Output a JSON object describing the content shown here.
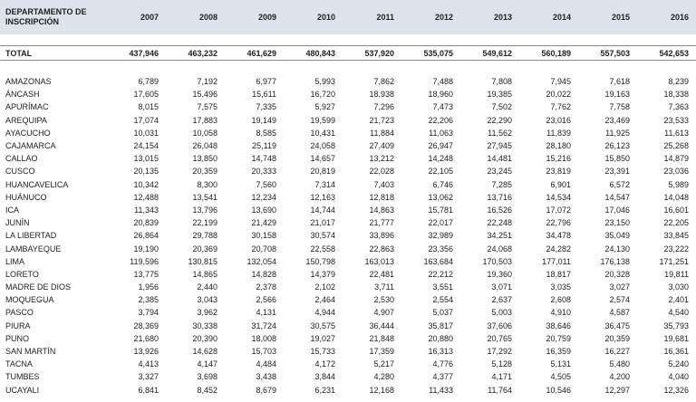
{
  "table": {
    "columns": [
      "DEPARTAMENTO DE INSCRIPCIÓN",
      "2007",
      "2008",
      "2009",
      "2010",
      "2011",
      "2012",
      "2013",
      "2014",
      "2015",
      "2016"
    ],
    "total": [
      "TOTAL",
      "437,946",
      "463,232",
      "461,629",
      "480,843",
      "537,920",
      "535,075",
      "549,612",
      "560,189",
      "557,503",
      "542,653"
    ],
    "rows": [
      [
        "AMAZONAS",
        "6,789",
        "7,192",
        "6,977",
        "5,993",
        "7,862",
        "7,488",
        "7,808",
        "7,945",
        "7,618",
        "8,239"
      ],
      [
        "ÁNCASH",
        "17,605",
        "15,496",
        "15,611",
        "16,720",
        "18,938",
        "18,960",
        "19,385",
        "20,022",
        "19,163",
        "18,338"
      ],
      [
        "APURÍMAC",
        "8,015",
        "7,575",
        "7,335",
        "5,927",
        "7,296",
        "7,473",
        "7,502",
        "7,762",
        "7,758",
        "7,363"
      ],
      [
        "AREQUIPA",
        "17,074",
        "17,883",
        "19,149",
        "19,599",
        "21,723",
        "22,206",
        "22,290",
        "23,016",
        "23,469",
        "23,533"
      ],
      [
        "AYACUCHO",
        "10,031",
        "10,058",
        "8,585",
        "10,431",
        "11,884",
        "11,063",
        "11,562",
        "11,839",
        "11,925",
        "11,613"
      ],
      [
        "CAJAMARCA",
        "24,154",
        "26,048",
        "25,119",
        "24,058",
        "27,409",
        "26,947",
        "27,945",
        "28,180",
        "26,123",
        "25,268"
      ],
      [
        "CALLAO",
        "13,015",
        "13,850",
        "14,748",
        "14,657",
        "13,212",
        "14,248",
        "14,481",
        "15,216",
        "15,850",
        "14,879"
      ],
      [
        "CUSCO",
        "20,135",
        "20,359",
        "20,333",
        "20,819",
        "22,028",
        "22,105",
        "23,245",
        "23,819",
        "23,391",
        "23,036"
      ],
      [
        "HUANCAVELICA",
        "10,342",
        "8,300",
        "7,560",
        "7,314",
        "7,403",
        "6,746",
        "7,285",
        "6,901",
        "6,572",
        "5,989"
      ],
      [
        "HUÁNUCO",
        "12,488",
        "13,541",
        "12,234",
        "12,163",
        "12,818",
        "13,062",
        "13,716",
        "14,534",
        "14,547",
        "14,048"
      ],
      [
        "ICA",
        "11,343",
        "13,796",
        "13,690",
        "14,744",
        "14,863",
        "15,781",
        "16,526",
        "17,072",
        "17,046",
        "16,601"
      ],
      [
        "JUNÍN",
        "20,839",
        "22,199",
        "21,429",
        "21,017",
        "21,777",
        "22,017",
        "22,248",
        "22,796",
        "23,150",
        "22,205"
      ],
      [
        "LA LIBERTAD",
        "26,864",
        "29,788",
        "30,158",
        "30,574",
        "33,896",
        "32,989",
        "34,251",
        "34,478",
        "35,049",
        "33,845"
      ],
      [
        "LAMBAYEQUE",
        "19,190",
        "20,369",
        "20,708",
        "22,558",
        "22,863",
        "23,356",
        "24,068",
        "24,282",
        "24,130",
        "23,222"
      ],
      [
        "LIMA",
        "119,596",
        "130,815",
        "132,054",
        "150,798",
        "163,013",
        "163,684",
        "170,503",
        "177,011",
        "176,138",
        "171,251"
      ],
      [
        "LORETO",
        "13,775",
        "14,865",
        "14,828",
        "14,379",
        "22,481",
        "22,212",
        "19,360",
        "18,817",
        "20,328",
        "19,811"
      ],
      [
        "MADRE DE DIOS",
        "1,956",
        "2,440",
        "2,378",
        "2,102",
        "3,711",
        "3,551",
        "3,071",
        "3,035",
        "3,027",
        "3,030"
      ],
      [
        "MOQUEGUA",
        "2,385",
        "3,043",
        "2,566",
        "2,464",
        "2,530",
        "2,554",
        "2,637",
        "2,608",
        "2,574",
        "2,401"
      ],
      [
        "PASCO",
        "3,794",
        "3,962",
        "4,131",
        "4,944",
        "4,907",
        "5,037",
        "5,003",
        "4,910",
        "4,587",
        "4,540"
      ],
      [
        "PIURA",
        "28,369",
        "30,338",
        "31,724",
        "30,575",
        "36,444",
        "35,817",
        "37,606",
        "38,646",
        "36,475",
        "35,793"
      ],
      [
        "PUNO",
        "21,680",
        "20,390",
        "18,008",
        "19,027",
        "21,848",
        "20,880",
        "20,765",
        "20,759",
        "20,359",
        "19,681"
      ],
      [
        "SAN MARTÍN",
        "13,926",
        "14,628",
        "15,703",
        "15,733",
        "17,359",
        "16,313",
        "17,292",
        "16,359",
        "16,227",
        "16,361"
      ],
      [
        "TACNA",
        "4,413",
        "4,147",
        "4,484",
        "4,172",
        "5,217",
        "4,776",
        "5,128",
        "5,131",
        "5,480",
        "5,240"
      ],
      [
        "TUMBES",
        "3,327",
        "3,698",
        "3,438",
        "3,844",
        "4,280",
        "4,377",
        "4,171",
        "4,505",
        "4,200",
        "4,040"
      ],
      [
        "UCAYALI",
        "6,841",
        "8,452",
        "8,679",
        "6,231",
        "12,168",
        "11,433",
        "11,764",
        "10,546",
        "12,297",
        "12,326"
      ]
    ]
  }
}
